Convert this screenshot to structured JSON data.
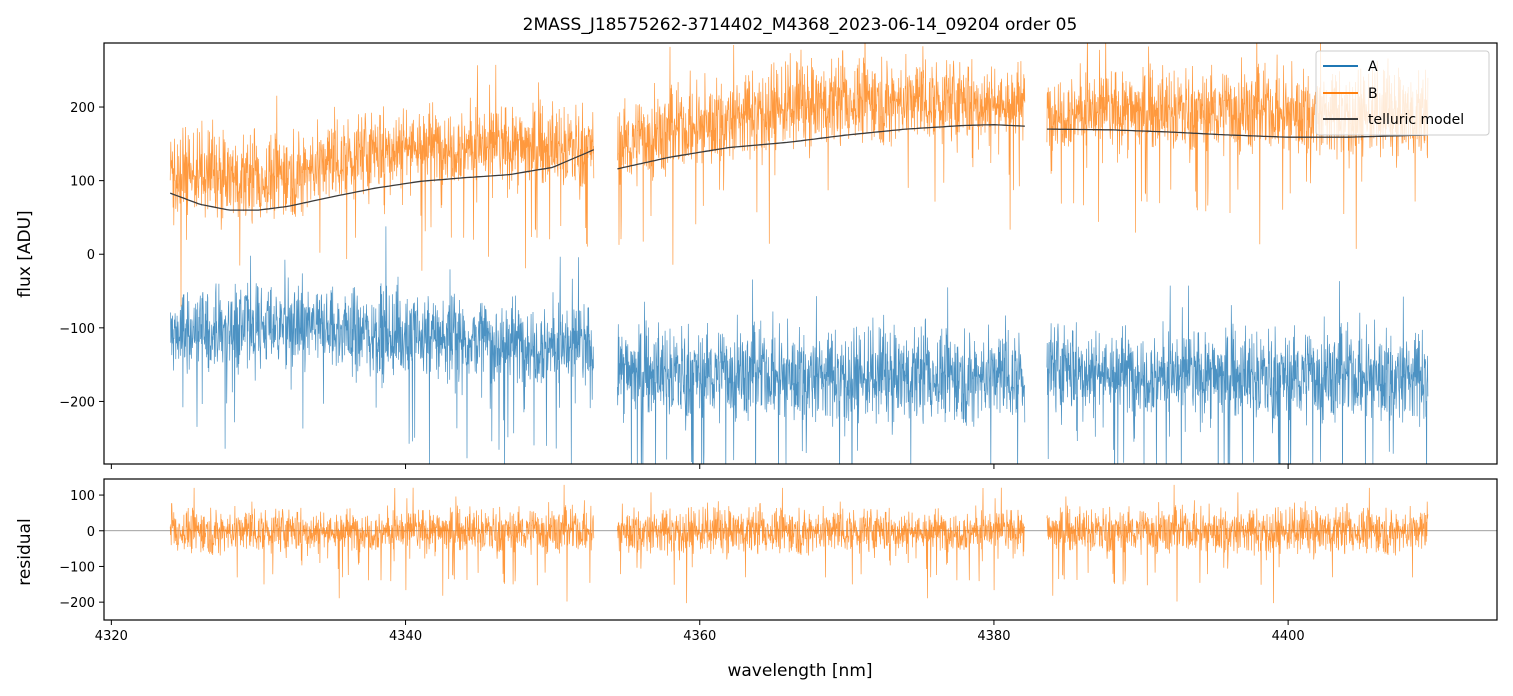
{
  "title": "2MASS_J18575262-3714402_M4368_2023-06-14_09204  order 05",
  "colors": {
    "A": "#1f77b4",
    "B": "#ff7f0e",
    "telluric": "#3b3b3b",
    "residual": "#ff7f0e",
    "zero_line": "#808080"
  },
  "chart_data": [
    {
      "type": "line",
      "panel": "flux",
      "title": "2MASS_J18575262-3714402_M4368_2023-06-14_09204  order 05",
      "xlabel": "",
      "ylabel": "flux [ADU]",
      "xlim": [
        4319.5,
        4414.2
      ],
      "ylim": [
        -285,
        287
      ],
      "yticks": [
        -200,
        -100,
        0,
        100,
        200
      ],
      "ytick_labels": [
        "−200",
        "−100",
        "0",
        "100",
        "200"
      ],
      "xticks": [
        4320,
        4340,
        4360,
        4380,
        4400
      ],
      "x_segments": [
        [
          4324.0,
          4352.8
        ],
        [
          4354.4,
          4382.1
        ],
        [
          4383.6,
          4409.5
        ]
      ],
      "legend": {
        "position": "top-right",
        "entries": [
          "A",
          "B",
          "telluric model"
        ]
      },
      "series": [
        {
          "name": "A",
          "kind": "noisy",
          "level": [
            [
              4324,
              -110
            ],
            [
              4330,
              -95
            ],
            [
              4340,
              -110
            ],
            [
              4352,
              -125
            ],
            [
              4355,
              -160
            ],
            [
              4370,
              -165
            ],
            [
              4382,
              -165
            ],
            [
              4384,
              -155
            ],
            [
              4395,
              -165
            ],
            [
              4409,
              -165
            ]
          ],
          "noise": 55
        },
        {
          "name": "B",
          "kind": "noisy",
          "level": [
            [
              4324,
              115
            ],
            [
              4330,
              100
            ],
            [
              4340,
              150
            ],
            [
              4352,
              145
            ],
            [
              4355,
              150
            ],
            [
              4365,
              200
            ],
            [
              4372,
              210
            ],
            [
              4382,
              205
            ],
            [
              4384,
              195
            ],
            [
              4395,
              195
            ],
            [
              4409,
              190
            ]
          ],
          "noise": 50
        },
        {
          "name": "telluric model",
          "kind": "smooth",
          "segments": [
            [
              [
                4324,
                83
              ],
              [
                4326,
                68
              ],
              [
                4328,
                60
              ],
              [
                4330,
                60
              ],
              [
                4332,
                65
              ],
              [
                4335,
                78
              ],
              [
                4338,
                90
              ],
              [
                4341,
                99
              ],
              [
                4344,
                104
              ],
              [
                4347,
                108
              ],
              [
                4350,
                118
              ],
              [
                4352.8,
                142
              ]
            ],
            [
              [
                4354.4,
                116
              ],
              [
                4358,
                132
              ],
              [
                4362,
                145
              ],
              [
                4366,
                152
              ],
              [
                4370,
                162
              ],
              [
                4374,
                170
              ],
              [
                4378,
                175
              ],
              [
                4380,
                176
              ],
              [
                4382.1,
                174
              ]
            ],
            [
              [
                4383.6,
                170
              ],
              [
                4388,
                169
              ],
              [
                4392,
                166
              ],
              [
                4396,
                162
              ],
              [
                4400,
                159
              ],
              [
                4404,
                159
              ],
              [
                4409.5,
                162
              ]
            ]
          ]
        }
      ]
    },
    {
      "type": "line",
      "panel": "residual",
      "title": "",
      "xlabel": "wavelength [nm]",
      "ylabel": "residual",
      "xlim": [
        4319.5,
        4414.2
      ],
      "ylim": [
        -250,
        145
      ],
      "yticks": [
        -200,
        -100,
        0,
        100
      ],
      "ytick_labels": [
        "−200",
        "−100",
        "0",
        "100"
      ],
      "xticks": [
        4320,
        4340,
        4360,
        4380,
        4400
      ],
      "xtick_labels": [
        "4320",
        "4340",
        "4360",
        "4380",
        "4400"
      ],
      "x_segments": [
        [
          4324.0,
          4352.8
        ],
        [
          4354.4,
          4382.1
        ],
        [
          4383.6,
          4409.5
        ]
      ],
      "series": [
        {
          "name": "residual",
          "kind": "noisy",
          "level": [
            [
              4324,
              0
            ],
            [
              4409.5,
              0
            ]
          ],
          "noise": 55
        }
      ],
      "reference_line_y": 0
    }
  ]
}
